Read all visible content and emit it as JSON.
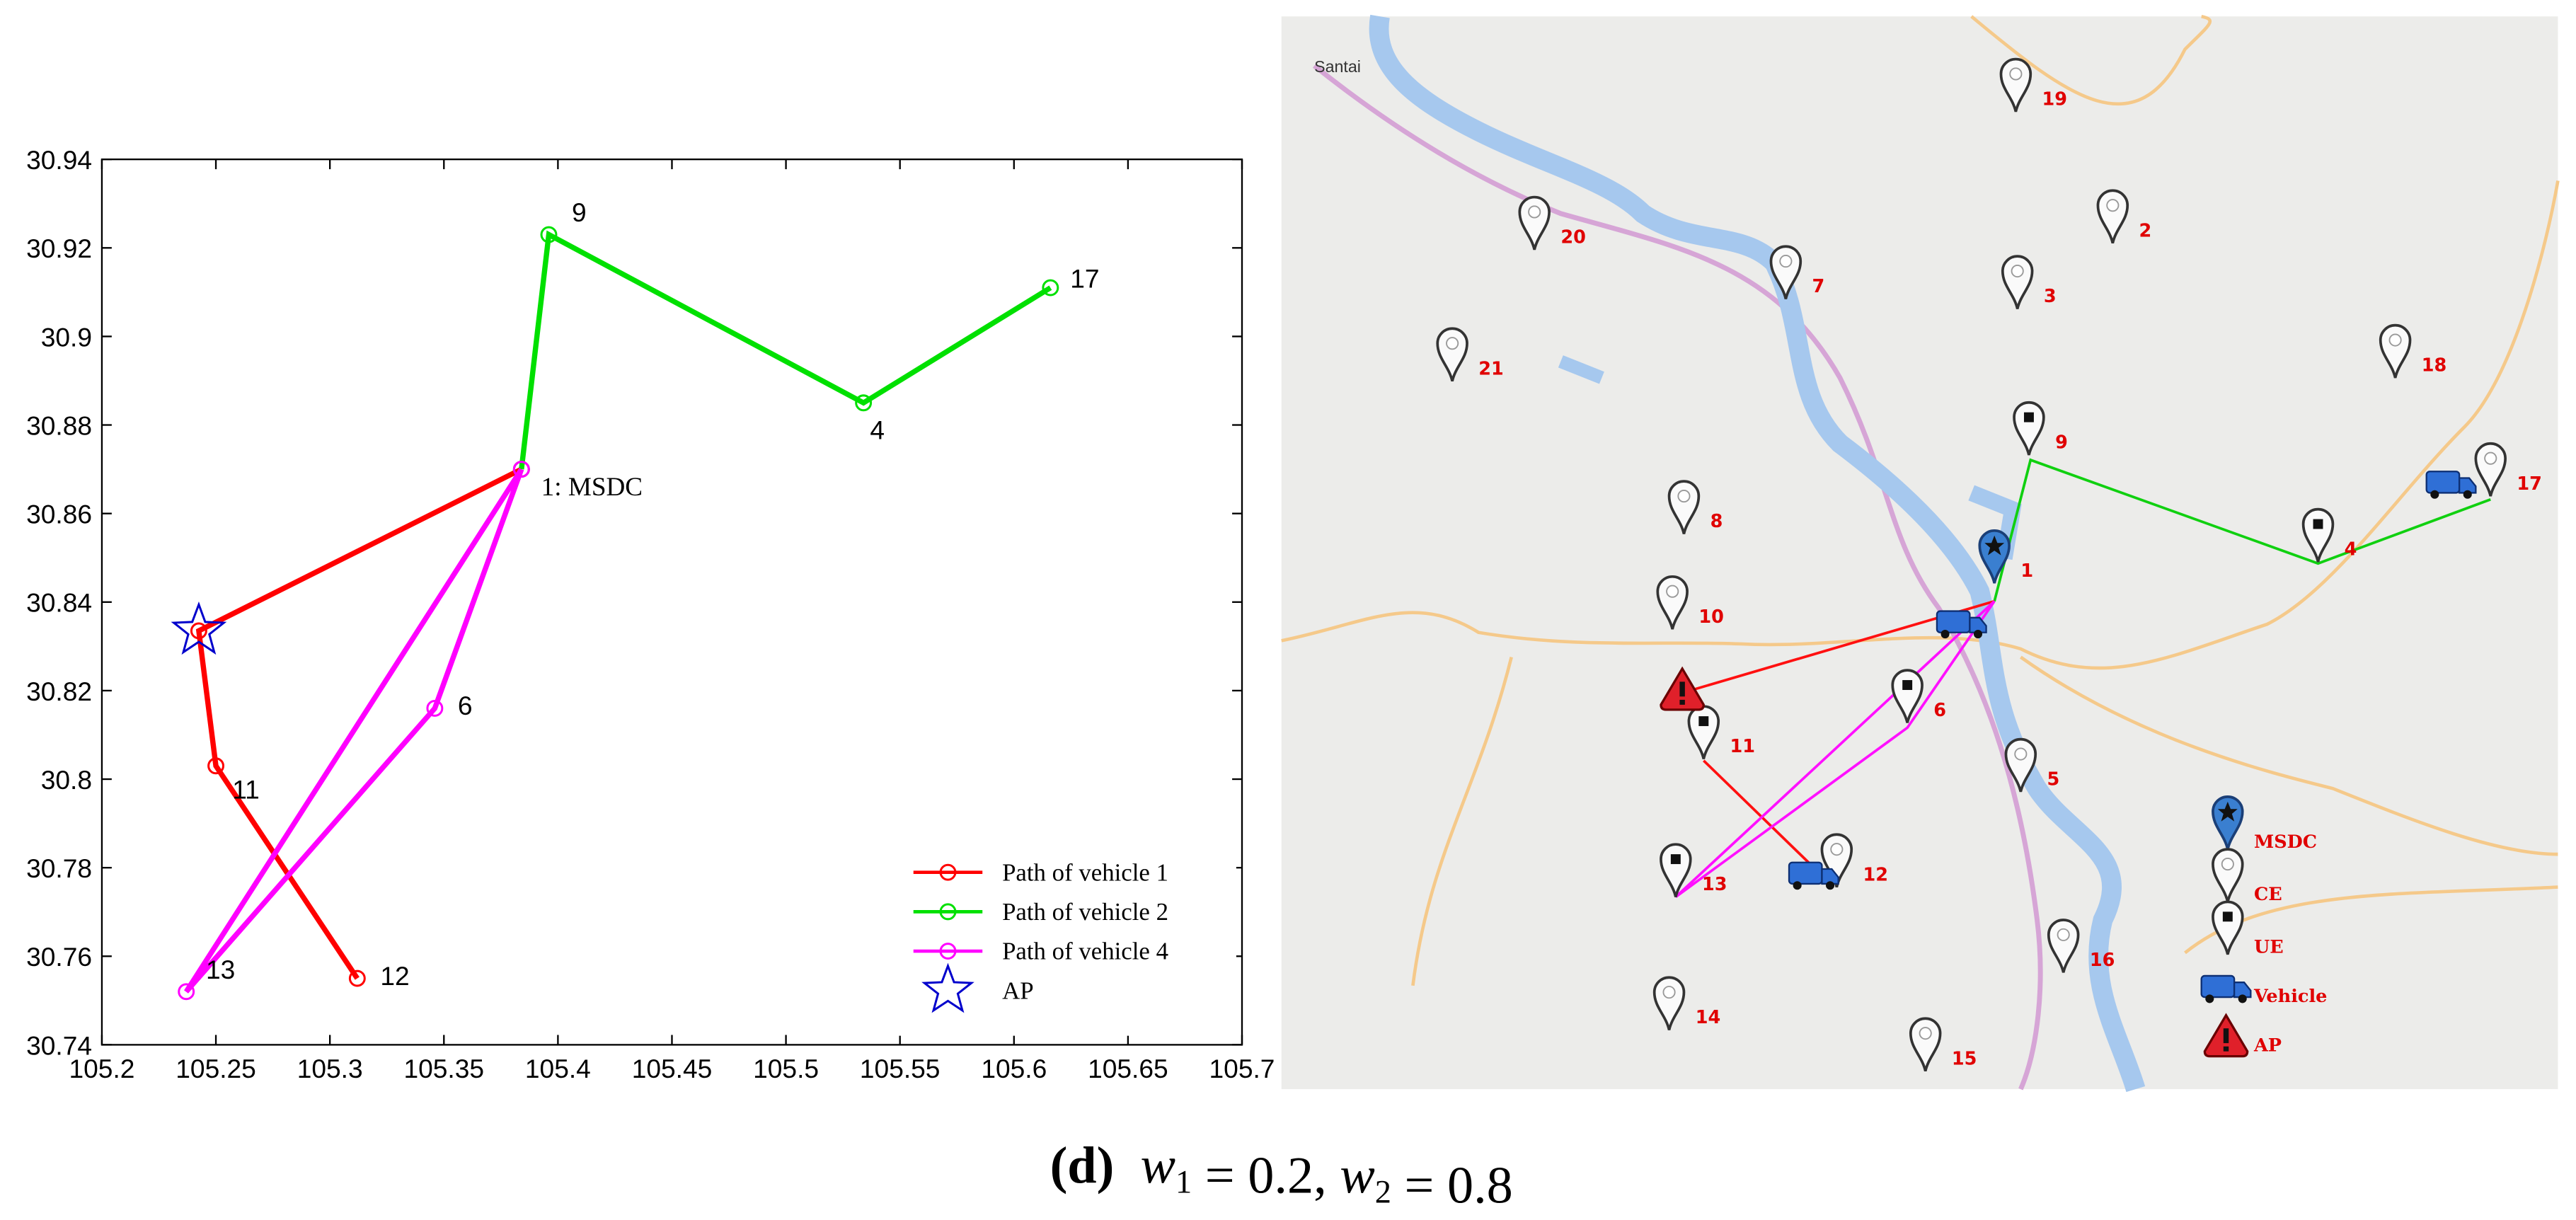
{
  "chart_data": {
    "type": "line",
    "xlim": [
      105.2,
      105.7
    ],
    "xticks": [
      105.2,
      105.25,
      105.3,
      105.35,
      105.4,
      105.45,
      105.5,
      105.55,
      105.6,
      105.65,
      105.7
    ],
    "ylim": [
      30.74,
      30.94
    ],
    "yticks": [
      30.74,
      30.76,
      30.78,
      30.8,
      30.82,
      30.84,
      30.86,
      30.88,
      30.9,
      30.92,
      30.94
    ],
    "legend": "lower right",
    "series": [
      {
        "name": "Path of vehicle 1",
        "color": "#ff0000",
        "marker": "circle",
        "x": [
          105.384,
          105.2425,
          105.25,
          105.312
        ],
        "values": [
          30.87,
          30.8335,
          30.803,
          30.755
        ],
        "point_labels": [
          "1: MSDC",
          null,
          "11",
          "12"
        ]
      },
      {
        "name": "Path of vehicle 2",
        "color": "#00e000",
        "marker": "circle",
        "x": [
          105.384,
          105.396,
          105.534,
          105.616
        ],
        "values": [
          30.87,
          30.923,
          30.885,
          30.911
        ],
        "point_labels": [
          null,
          "9",
          "4",
          "17"
        ]
      },
      {
        "name": "Path of vehicle 4",
        "color": "#ff00ff",
        "marker": "circle",
        "x": [
          105.384,
          105.346,
          105.237,
          105.384
        ],
        "values": [
          30.87,
          30.816,
          30.752,
          30.87
        ],
        "point_labels": [
          null,
          "6",
          "13",
          null
        ]
      },
      {
        "name": "AP",
        "color": "#0000cc",
        "marker": "star",
        "x": [
          105.2425
        ],
        "values": [
          30.8335
        ],
        "point_labels": [
          null
        ]
      }
    ]
  },
  "map": {
    "place": "Santai",
    "nodes": [
      "1",
      "2",
      "3",
      "4",
      "5",
      "6",
      "7",
      "8",
      "9",
      "10",
      "11",
      "12",
      "13",
      "14",
      "15",
      "16",
      "17",
      "18",
      "19",
      "20",
      "21"
    ],
    "legend": [
      "MSDC",
      "CE",
      "UE",
      "Vehicle",
      "AP"
    ]
  },
  "caption": {
    "tag": "(d)",
    "parts": [
      [
        "w",
        "1"
      ],
      [
        " = 0.2, ",
        null
      ],
      [
        "w",
        "2"
      ],
      [
        " = 0.8",
        null
      ]
    ]
  }
}
